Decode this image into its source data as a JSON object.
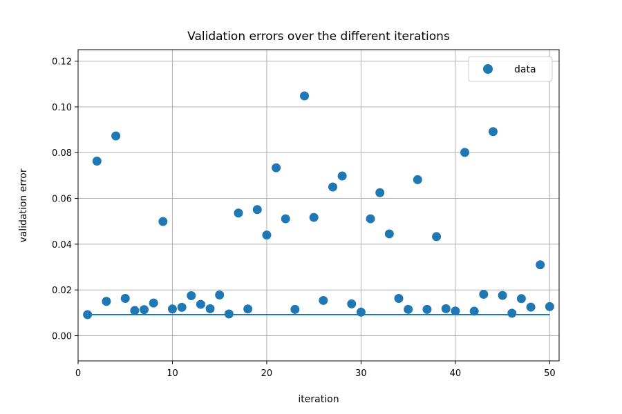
{
  "chart_data": {
    "type": "scatter",
    "title": "Validation errors over the different iterations",
    "xlabel": "iteration",
    "ylabel": "validation error",
    "xlim": [
      0,
      51
    ],
    "ylim": [
      -0.011,
      0.125
    ],
    "xticks": [
      0,
      10,
      20,
      30,
      40,
      50
    ],
    "yticks": [
      0.0,
      0.02,
      0.04,
      0.06,
      0.08,
      0.1,
      0.12
    ],
    "ytick_labels": [
      "0.00",
      "0.02",
      "0.04",
      "0.06",
      "0.08",
      "0.10",
      "0.12"
    ],
    "grid": true,
    "legend_position": "top-right",
    "series": [
      {
        "name": "data",
        "color": "#1f77b4",
        "x": [
          1,
          2,
          3,
          4,
          5,
          6,
          7,
          8,
          9,
          10,
          11,
          12,
          13,
          14,
          15,
          16,
          17,
          18,
          19,
          20,
          21,
          22,
          23,
          24,
          25,
          26,
          27,
          28,
          29,
          30,
          31,
          32,
          33,
          34,
          35,
          36,
          37,
          38,
          39,
          40,
          41,
          42,
          43,
          44,
          45,
          46,
          47,
          48,
          49,
          50
        ],
        "y": [
          0.0092,
          0.0763,
          0.015,
          0.0873,
          0.0163,
          0.011,
          0.0114,
          0.0143,
          0.0499,
          0.0117,
          0.0124,
          0.0175,
          0.0137,
          0.0118,
          0.0178,
          0.0095,
          0.0536,
          0.0117,
          0.0551,
          0.044,
          0.0734,
          0.0511,
          0.0115,
          0.1048,
          0.0517,
          0.0154,
          0.065,
          0.0698,
          0.0139,
          0.0103,
          0.0511,
          0.0625,
          0.0445,
          0.0163,
          0.0115,
          0.0682,
          0.0115,
          0.0433,
          0.0118,
          0.0108,
          0.0801,
          0.0107,
          0.0181,
          0.0892,
          0.0176,
          0.0098,
          0.0162,
          0.0125,
          0.031,
          0.0127
        ]
      }
    ],
    "line": {
      "color": "#1f77b4",
      "x": [
        1,
        50
      ],
      "y": [
        0.0092,
        0.0092
      ]
    }
  }
}
